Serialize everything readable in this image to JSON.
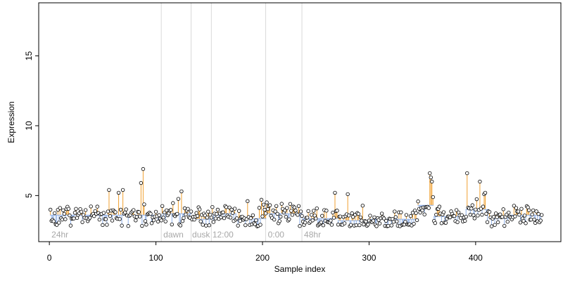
{
  "chart_data": {
    "type": "scatter",
    "xlabel": "Sample index",
    "ylabel": "Expression",
    "xlim": [
      -10,
      480
    ],
    "ylim": [
      1.7,
      18.8
    ],
    "xticks": [
      0,
      100,
      200,
      300,
      400
    ],
    "yticks": [
      5,
      10,
      15
    ],
    "grid": false,
    "legend": "none",
    "colors": {
      "points_fill": "#ffffff",
      "points_stroke": "#000000",
      "above_mean": "#f0a030",
      "below_mean": "#8fb0e8",
      "separator": "#d9d9d9",
      "annotation": "#a8a8a8"
    },
    "group_separators": [
      105,
      133,
      152,
      203,
      237
    ],
    "group_labels": [
      {
        "text": "24hr",
        "x": 2
      },
      {
        "text": "dawn",
        "x": 107
      },
      {
        "text": "dusk",
        "x": 134
      },
      {
        "text": "12:00",
        "x": 153
      },
      {
        "text": "0:00",
        "x": 205
      },
      {
        "text": "48hr",
        "x": 239
      }
    ],
    "segments": [
      {
        "x_start": 1,
        "x_end": 105,
        "mean": 3.6
      },
      {
        "x_start": 106,
        "x_end": 133,
        "mean": 3.7
      },
      {
        "x_start": 134,
        "x_end": 152,
        "mean": 3.3
      },
      {
        "x_start": 153,
        "x_end": 175,
        "mean": 3.7
      },
      {
        "x_start": 176,
        "x_end": 203,
        "mean": 3.35
      },
      {
        "x_start": 204,
        "x_end": 237,
        "mean": 3.7
      },
      {
        "x_start": 238,
        "x_end": 270,
        "mean": 3.35
      },
      {
        "x_start": 271,
        "x_end": 300,
        "mean": 3.2
      },
      {
        "x_start": 301,
        "x_end": 345,
        "mean": 3.3
      },
      {
        "x_start": 346,
        "x_end": 360,
        "mean": 4.3
      },
      {
        "x_start": 361,
        "x_end": 390,
        "mean": 3.5
      },
      {
        "x_start": 391,
        "x_end": 412,
        "mean": 4.0
      },
      {
        "x_start": 413,
        "x_end": 430,
        "mean": 3.4
      },
      {
        "x_start": 431,
        "x_end": 462,
        "mean": 3.6
      }
    ],
    "highlights": [
      {
        "x": 56,
        "y": 5.4
      },
      {
        "x": 65,
        "y": 5.2
      },
      {
        "x": 69,
        "y": 5.4
      },
      {
        "x": 86,
        "y": 5.9
      },
      {
        "x": 88,
        "y": 6.9
      },
      {
        "x": 124,
        "y": 5.3
      },
      {
        "x": 186,
        "y": 4.6
      },
      {
        "x": 199,
        "y": 4.7
      },
      {
        "x": 268,
        "y": 5.2
      },
      {
        "x": 280,
        "y": 5.1
      },
      {
        "x": 357,
        "y": 6.6
      },
      {
        "x": 358,
        "y": 6.3
      },
      {
        "x": 359,
        "y": 6.0
      },
      {
        "x": 392,
        "y": 6.6
      },
      {
        "x": 404,
        "y": 6.0
      },
      {
        "x": 408,
        "y": 5.1
      },
      {
        "x": 409,
        "y": 5.2
      }
    ]
  }
}
